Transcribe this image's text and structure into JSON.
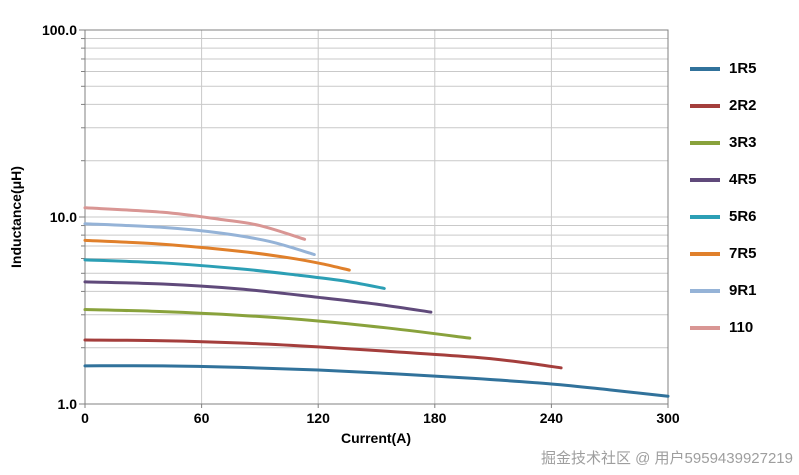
{
  "watermark": "掘金技术社区 @ 用户5959439927219",
  "chart_data": {
    "type": "line",
    "title": "",
    "xlabel": "Current(A)",
    "ylabel": "Inductance(μH)",
    "xlim": [
      0,
      300
    ],
    "ylim": [
      1.0,
      100.0
    ],
    "y_scale": "log",
    "grid": true,
    "legend_position": "right",
    "x_ticks": [
      {
        "value": 0,
        "label": "0"
      },
      {
        "value": 60,
        "label": "60"
      },
      {
        "value": 120,
        "label": "120"
      },
      {
        "value": 180,
        "label": "180"
      },
      {
        "value": 240,
        "label": "240"
      },
      {
        "value": 300,
        "label": "300"
      }
    ],
    "y_ticks": [
      {
        "value": 1,
        "label": "1.0"
      },
      {
        "value": 10,
        "label": "10.0"
      },
      {
        "value": 100,
        "label": "100.0"
      }
    ],
    "y_minor_gridlines": [
      2,
      3,
      4,
      5,
      6,
      7,
      8,
      9,
      20,
      30,
      40,
      50,
      60,
      70,
      80,
      90
    ],
    "colors": {
      "gridline": "#c9c9c9",
      "plot_border": "#808080",
      "tick": "#808080",
      "axis_text": "#000000"
    },
    "series": [
      {
        "name": "1R5",
        "color": "#31729B",
        "points": [
          [
            0,
            1.6
          ],
          [
            40,
            1.6
          ],
          [
            80,
            1.57
          ],
          [
            120,
            1.52
          ],
          [
            160,
            1.45
          ],
          [
            200,
            1.37
          ],
          [
            240,
            1.28
          ],
          [
            270,
            1.19
          ],
          [
            300,
            1.1
          ]
        ]
      },
      {
        "name": "2R2",
        "color": "#A43E3C",
        "points": [
          [
            0,
            2.2
          ],
          [
            40,
            2.18
          ],
          [
            80,
            2.12
          ],
          [
            120,
            2.02
          ],
          [
            160,
            1.9
          ],
          [
            200,
            1.78
          ],
          [
            225,
            1.67
          ],
          [
            245,
            1.56
          ]
        ]
      },
      {
        "name": "3R3",
        "color": "#89A23C",
        "points": [
          [
            0,
            3.2
          ],
          [
            40,
            3.12
          ],
          [
            80,
            2.98
          ],
          [
            120,
            2.78
          ],
          [
            160,
            2.52
          ],
          [
            198,
            2.25
          ]
        ]
      },
      {
        "name": "4R5",
        "color": "#604A7B",
        "points": [
          [
            0,
            4.5
          ],
          [
            40,
            4.38
          ],
          [
            80,
            4.12
          ],
          [
            120,
            3.72
          ],
          [
            150,
            3.42
          ],
          [
            178,
            3.1
          ]
        ]
      },
      {
        "name": "5R6",
        "color": "#2C9FB5",
        "points": [
          [
            0,
            5.9
          ],
          [
            40,
            5.68
          ],
          [
            80,
            5.28
          ],
          [
            110,
            4.88
          ],
          [
            135,
            4.52
          ],
          [
            154,
            4.15
          ]
        ]
      },
      {
        "name": "7R5",
        "color": "#E0802B",
        "points": [
          [
            0,
            7.5
          ],
          [
            40,
            7.15
          ],
          [
            80,
            6.55
          ],
          [
            105,
            6.05
          ],
          [
            122,
            5.62
          ],
          [
            136,
            5.2
          ]
        ]
      },
      {
        "name": "9R1",
        "color": "#95B3D7",
        "points": [
          [
            0,
            9.2
          ],
          [
            40,
            8.8
          ],
          [
            70,
            8.2
          ],
          [
            95,
            7.4
          ],
          [
            118,
            6.3
          ]
        ]
      },
      {
        "name": "110",
        "color": "#D99694",
        "points": [
          [
            0,
            11.2
          ],
          [
            40,
            10.6
          ],
          [
            70,
            9.7
          ],
          [
            90,
            9.0
          ],
          [
            113,
            7.6
          ]
        ]
      }
    ]
  }
}
